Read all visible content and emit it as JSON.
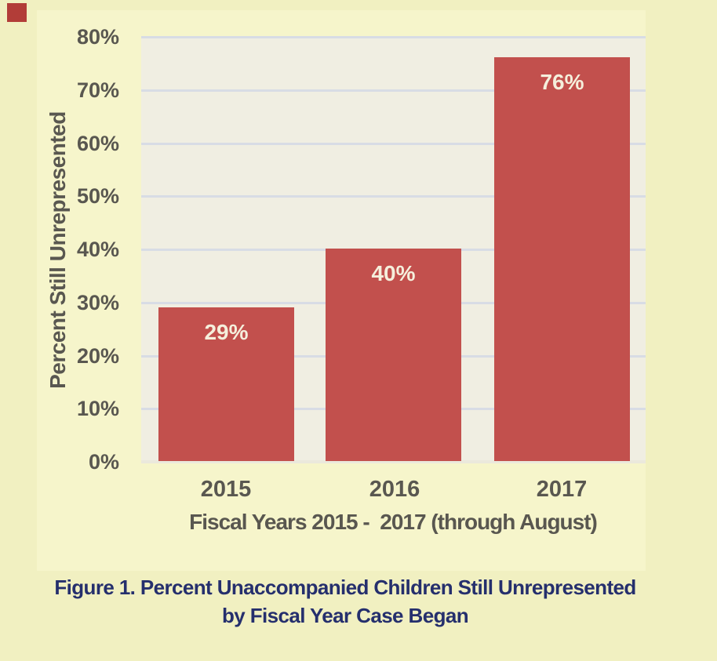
{
  "page": {
    "background_color": "#f1f0c1",
    "figure_background_color": "#f6f5cb",
    "plot_background_color": "#f0eee2"
  },
  "decor": {
    "red_square_color": "#b23d38"
  },
  "chart_data": {
    "type": "bar",
    "categories": [
      "2015",
      "2016",
      "2017"
    ],
    "values": [
      29,
      40,
      76
    ],
    "value_labels": [
      "29%",
      "40%",
      "76%"
    ],
    "xlabel": "Fiscal Years 2015 -  2017 (through August)",
    "ylabel": "Percent Still Unrepresented",
    "ylim": [
      0,
      80
    ],
    "ytick_step": 10,
    "ytick_labels": [
      "0%",
      "10%",
      "20%",
      "30%",
      "40%",
      "50%",
      "60%",
      "70%",
      "80%"
    ],
    "grid": true,
    "legend": "none",
    "bar_color": "#c2504d",
    "bar_label_color": "#f5efdc",
    "gridline_color": "#d8dce5",
    "baseline_color": "#ebe9dc",
    "axis_text_color": "#595750"
  },
  "caption": {
    "line1": "Figure 1. Percent Unaccompanied Children Still Unrepresented",
    "line2": "by Fiscal Year Case Began",
    "color": "#252f6d"
  }
}
